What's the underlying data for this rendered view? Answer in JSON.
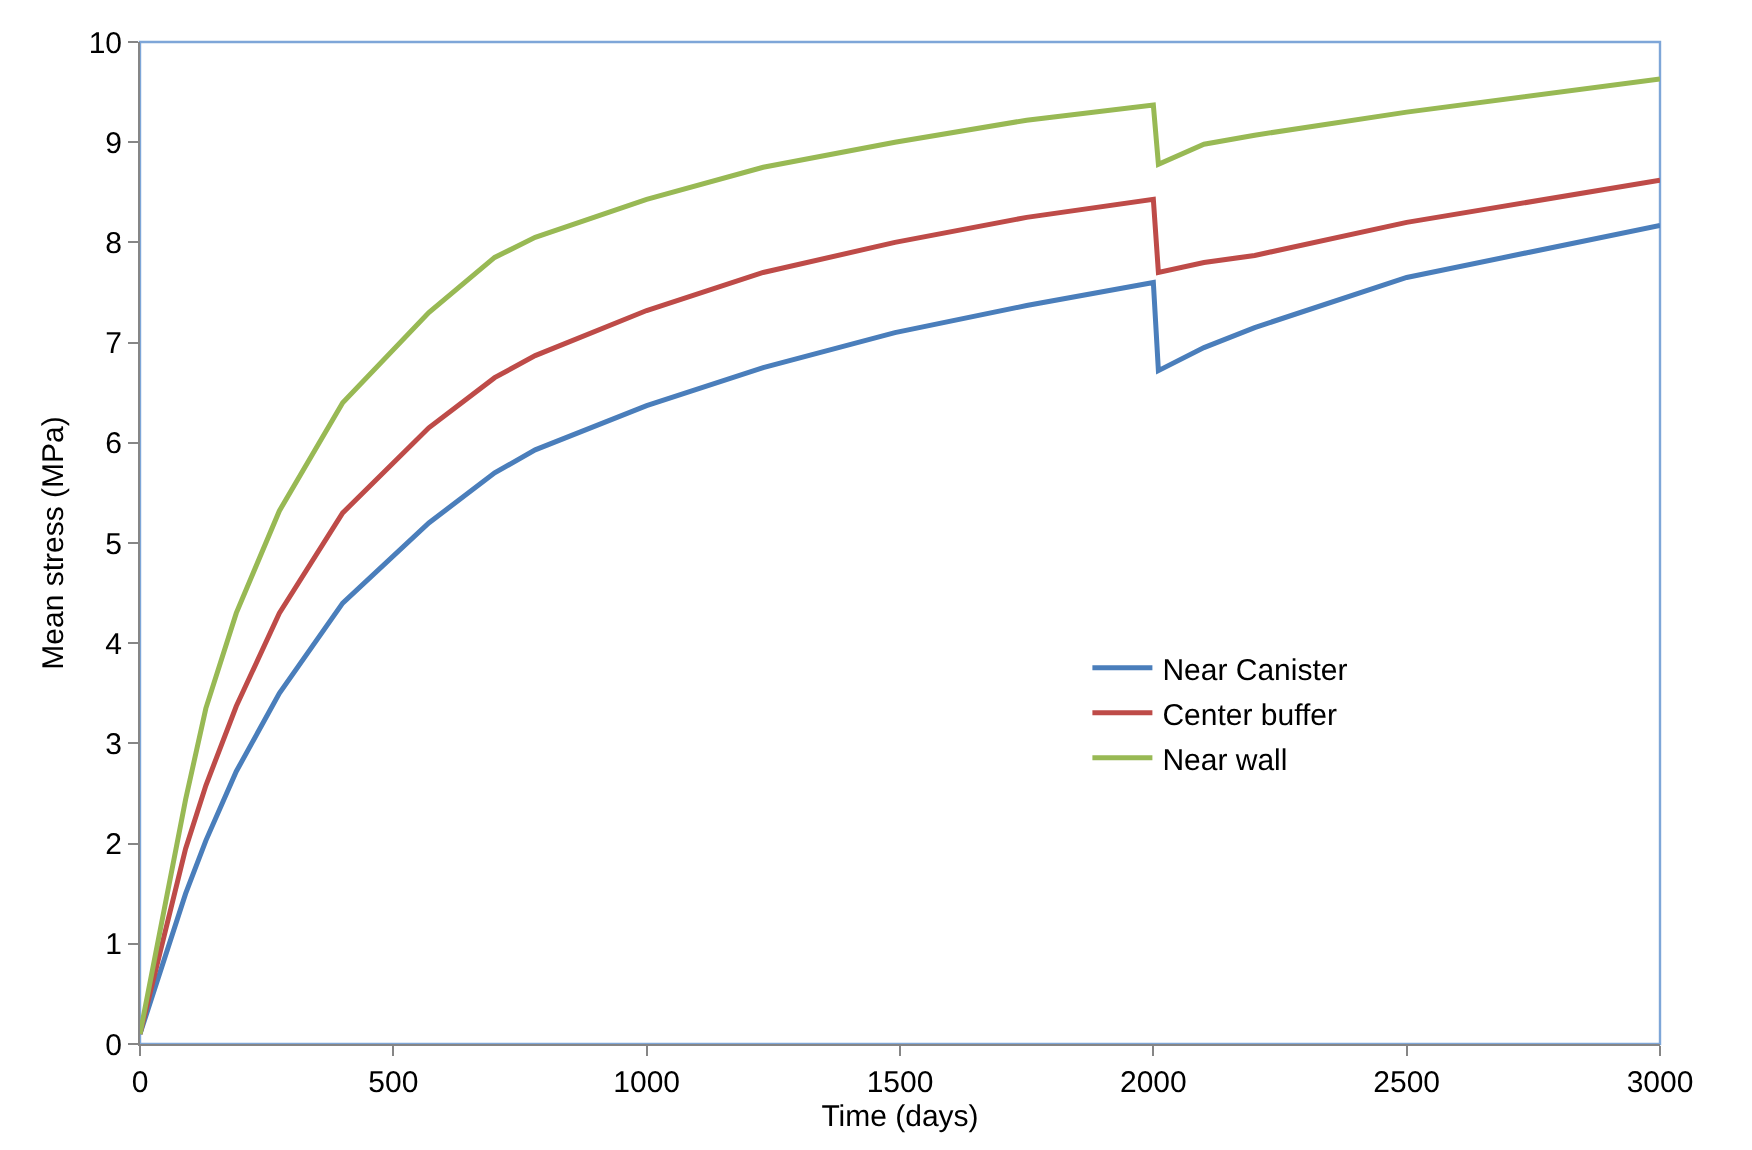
{
  "chart_data": {
    "type": "line",
    "xlabel": "Time (days)",
    "ylabel": "Mean stress (MPa)",
    "x": [
      0,
      90,
      130,
      190,
      275,
      400,
      570,
      700,
      780,
      1000,
      1230,
      1490,
      1750,
      2000,
      2010,
      2100,
      2200,
      2500,
      3000
    ],
    "series": [
      {
        "name": "Near Canister",
        "color": "#4a7ebb",
        "values": [
          0.1,
          1.5,
          2.03,
          2.72,
          3.5,
          4.4,
          5.2,
          5.7,
          5.93,
          6.37,
          6.75,
          7.1,
          7.37,
          7.6,
          6.72,
          6.95,
          7.15,
          7.65,
          8.17
        ]
      },
      {
        "name": "Center buffer",
        "color": "#be4b48",
        "values": [
          0.1,
          1.95,
          2.58,
          3.37,
          4.3,
          5.3,
          6.15,
          6.65,
          6.87,
          7.32,
          7.7,
          8.0,
          8.25,
          8.43,
          7.7,
          7.8,
          7.87,
          8.2,
          8.62
        ]
      },
      {
        "name": "Near wall",
        "color": "#98b954",
        "values": [
          0.1,
          2.44,
          3.35,
          4.3,
          5.32,
          6.4,
          7.3,
          7.85,
          8.05,
          8.43,
          8.75,
          9.0,
          9.22,
          9.37,
          8.78,
          8.98,
          9.07,
          9.3,
          9.63
        ]
      }
    ],
    "xlim": [
      0,
      3000
    ],
    "xticks": [
      0,
      500,
      1000,
      1500,
      2000,
      2500,
      3000
    ],
    "ylim": [
      0,
      10
    ],
    "yticks": [
      0,
      1,
      2,
      3,
      4,
      5,
      6,
      7,
      8,
      9,
      10
    ],
    "grid": false,
    "legend": "right",
    "marker": "none",
    "line_style": "solid"
  }
}
